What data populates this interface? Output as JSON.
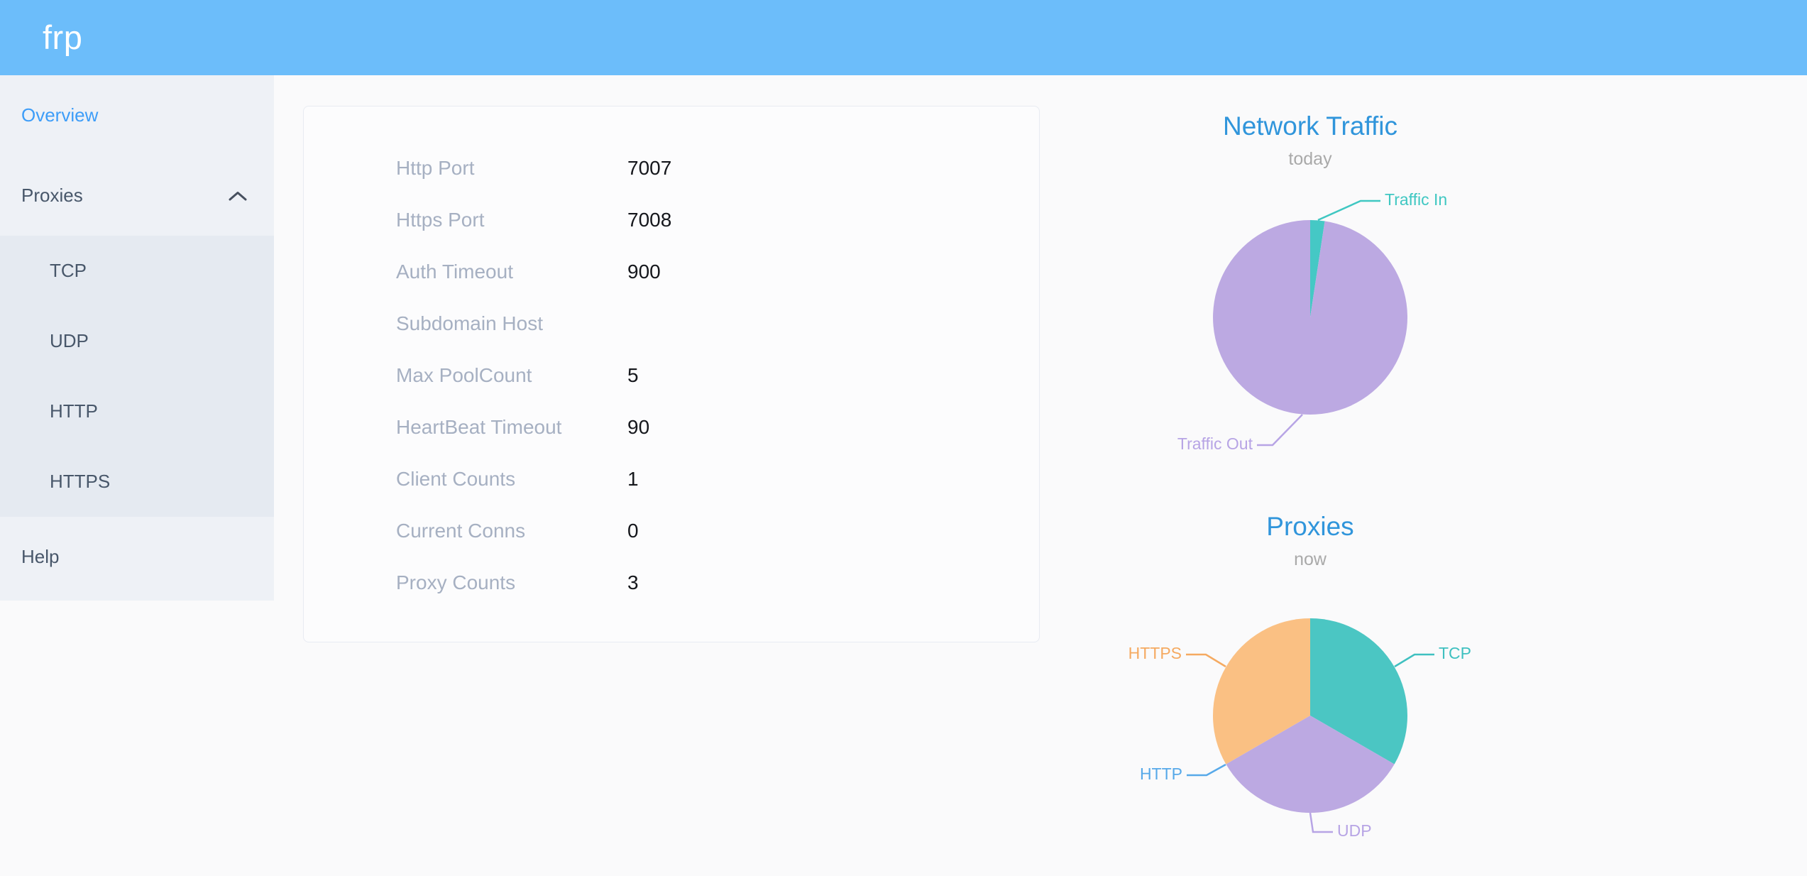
{
  "header": {
    "logo": "frp"
  },
  "sidebar": {
    "items": [
      {
        "label": "Overview",
        "active": true
      },
      {
        "label": "Proxies",
        "expanded": true,
        "children": [
          "TCP",
          "UDP",
          "HTTP",
          "HTTPS"
        ]
      },
      {
        "label": "Help"
      }
    ]
  },
  "overview_card": {
    "rows": [
      {
        "label": "Http Port",
        "value": "7007"
      },
      {
        "label": "Https Port",
        "value": "7008"
      },
      {
        "label": "Auth Timeout",
        "value": "900"
      },
      {
        "label": "Subdomain Host",
        "value": ""
      },
      {
        "label": "Max PoolCount",
        "value": "5"
      },
      {
        "label": "HeartBeat Timeout",
        "value": "90"
      },
      {
        "label": "Client Counts",
        "value": "1"
      },
      {
        "label": "Current Conns",
        "value": "0"
      },
      {
        "label": "Proxy Counts",
        "value": "3"
      }
    ]
  },
  "chart_data": [
    {
      "type": "pie",
      "title": "Network Traffic",
      "subtitle": "today",
      "legend_position": "outside-labels",
      "slices": [
        {
          "label": "Traffic In",
          "value": 2.4,
          "unit": "% of today's traffic",
          "color": "#45c8c5",
          "label_color": "#3fc7c2"
        },
        {
          "label": "Traffic Out",
          "value": 97.6,
          "unit": "% of today's traffic",
          "color": "#bca9e2",
          "label_color": "#b7a4e5"
        }
      ]
    },
    {
      "type": "pie",
      "title": "Proxies",
      "subtitle": "now",
      "legend_position": "outside-labels",
      "slices": [
        {
          "label": "TCP",
          "value": 1,
          "unit": "proxies",
          "color": "#4bc6c3",
          "label_color": "#3fc0c0"
        },
        {
          "label": "UDP",
          "value": 1,
          "unit": "proxies",
          "color": "#bca9e2",
          "label_color": "#b7a4e5"
        },
        {
          "label": "HTTP",
          "value": 0,
          "unit": "proxies",
          "color": "#57a9e9",
          "label_color": "#57a9e9"
        },
        {
          "label": "HTTPS",
          "value": 1,
          "unit": "proxies",
          "color": "#fac083",
          "label_color": "#f5aa61"
        }
      ]
    }
  ],
  "colors": {
    "header_bg": "#6cbdfa",
    "sidebar_bg": "#eef1f6",
    "submenu_bg": "#e5eaf1",
    "menu_text": "#48576a",
    "menu_active": "#3d9df8",
    "chart_title": "#3095db",
    "chart_subtitle": "#a9a9a9",
    "card_label": "#a6b0c2",
    "card_value": "#15171c"
  }
}
